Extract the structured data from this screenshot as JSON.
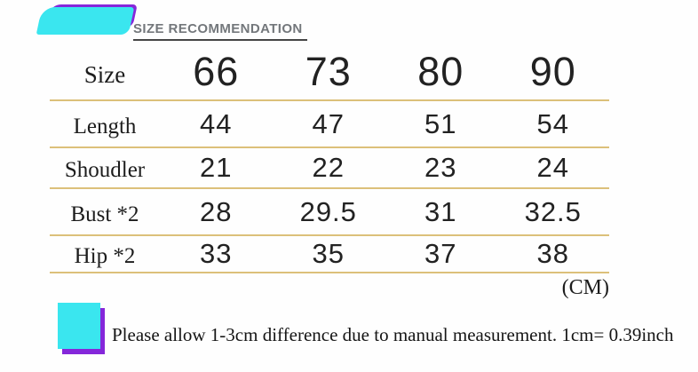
{
  "header": {
    "title": "SIZE RECOMMENDATION"
  },
  "table": {
    "rows": [
      {
        "label": "Size",
        "values": [
          "66",
          "73",
          "80",
          "90"
        ]
      },
      {
        "label": "Length",
        "values": [
          "44",
          "47",
          "51",
          "54"
        ]
      },
      {
        "label": "Shoudler",
        "values": [
          "21",
          "22",
          "23",
          "24"
        ]
      },
      {
        "label": "Bust *2",
        "values": [
          "28",
          "29.5",
          "31",
          "32.5"
        ]
      },
      {
        "label": "Hip *2",
        "values": [
          "33",
          "35",
          "37",
          "38"
        ]
      }
    ],
    "unit": "(CM)"
  },
  "footer": {
    "note": "Please allow 1-3cm difference due to manual measurement. 1cm= 0.39inch"
  },
  "colors": {
    "accent-cyan": "#3ae6ef",
    "accent-purple": "#8527da",
    "table-line": "#dcc07a",
    "title-gray": "#73777b",
    "text-dark": "#1c1c1c"
  },
  "chart_data": {
    "type": "table",
    "title": "SIZE RECOMMENDATION",
    "columns": [
      "Size",
      "66",
      "73",
      "80",
      "90"
    ],
    "rows": [
      [
        "Length",
        44,
        47,
        51,
        54
      ],
      [
        "Shoudler",
        21,
        22,
        23,
        24
      ],
      [
        "Bust *2",
        28,
        29.5,
        31,
        32.5
      ],
      [
        "Hip *2",
        33,
        35,
        37,
        38
      ]
    ],
    "unit": "CM",
    "note": "Please allow 1-3cm difference due to manual measurement. 1cm= 0.39inch"
  }
}
